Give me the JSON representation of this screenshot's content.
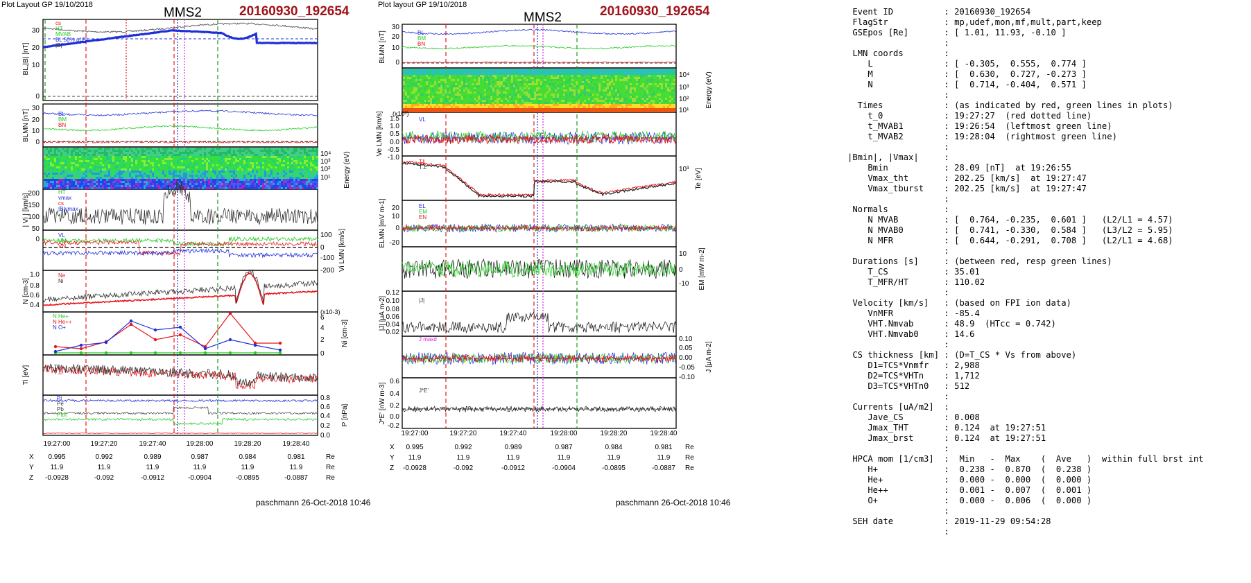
{
  "left": {
    "header": "Plot Layout GP 19/10/2018",
    "title": "MMS2",
    "event": "20160930_192654",
    "footer": "paschmann 26-Oct-2018 10:46",
    "xticks": [
      "19:27:00",
      "19:27:20",
      "19:27:40",
      "19:28:00",
      "19:28:20",
      "19:28:40"
    ],
    "coords": {
      "X": [
        "0.995",
        "0.992",
        "0.989",
        "0.987",
        "0.984",
        "0.981"
      ],
      "Y": [
        "11.9",
        "11.9",
        "11.9",
        "11.9",
        "11.9",
        "11.9"
      ],
      "Z": [
        "-0.0928",
        "-0.092",
        "-0.0912",
        "-0.0904",
        "-0.0895",
        "-0.0887"
      ],
      "unit": "Re"
    },
    "panels": {
      "p1": {
        "ylabel": "BL,|B| [nT]",
        "ticks": [
          "30",
          "20",
          "10",
          "0"
        ],
        "legend": [
          "cs",
          "HT",
          "MVAB",
          "BL 50% of BL",
          "|B|"
        ]
      },
      "p2": {
        "ylabel": "BLMN [nT]",
        "ticks": [
          "30",
          "20",
          "10",
          "0"
        ],
        "labels": [
          "BL",
          "BM",
          "BN"
        ]
      },
      "p3": {
        "ylabel": "Energy (eV)",
        "ticks": [
          "10⁴",
          "10³",
          "10²",
          "10¹"
        ]
      },
      "p4": {
        "ylabel": "| Vi | [km/s]",
        "ticks": [
          "200",
          "150",
          "100",
          "50",
          "0"
        ],
        "legend": [
          "HT",
          "vmax",
          "cs",
          "|B|vmax"
        ]
      },
      "p5": {
        "ylabel": "Vi LMN [km/s]",
        "ticks": [
          "100",
          "0",
          "-100",
          "-200"
        ],
        "labels": [
          "VL",
          "VM",
          "VN"
        ]
      },
      "p6": {
        "ylabel": "N [cm-3]",
        "ticks": [
          "1.0",
          "0.8",
          "0.6",
          "0.4"
        ],
        "legend": [
          "Ne",
          "Ni"
        ]
      },
      "p7": {
        "ylabel": "Ni [cm-3]",
        "ticks": [
          "6",
          "4",
          "2",
          "0"
        ],
        "scale": "(x10-3)",
        "legend": [
          "N He+",
          "N He++",
          "N O+"
        ]
      },
      "p8": {
        "ylabel": "Ti [eV]",
        "legend": [
          "T∥",
          "T⊥"
        ]
      },
      "p9": {
        "ylabel": "P [nPa]",
        "ticks": [
          "0.8",
          "0.6",
          "0.4",
          "0.2",
          "0.0"
        ],
        "legend": [
          "Pi",
          "Pe",
          "Pb",
          "Ptot"
        ]
      }
    }
  },
  "middle": {
    "header": "Plot layout GP 19/10/2018",
    "title": "MMS2",
    "event": "20160930_192654",
    "footer": "paschmann 26-Oct-2018 10:46",
    "xticks": [
      "19:27:00",
      "19:27:20",
      "19:27:40",
      "19:28:00",
      "19:28:20",
      "19:28:40"
    ],
    "coords": {
      "X": [
        "0.995",
        "0.992",
        "0.989",
        "0.987",
        "0.984",
        "0.981"
      ],
      "Y": [
        "11.9",
        "11.9",
        "11.9",
        "11.9",
        "11.9",
        "11.9"
      ],
      "Z": [
        "-0.0928",
        "-0.092",
        "-0.0912",
        "-0.0904",
        "-0.0895",
        "-0.0887"
      ],
      "unit": "Re"
    },
    "panels": {
      "m1": {
        "ylabel": "BLMN [nT]",
        "ticks": [
          "30",
          "20",
          "10",
          "0"
        ],
        "labels": [
          "BL",
          "BM",
          "BN"
        ]
      },
      "m2": {
        "ylabel": "Energy (eV)",
        "ticks": [
          "10⁴",
          "10³",
          "10²",
          "10¹"
        ]
      },
      "m3": {
        "ylabel": "Ve LMN [km/s]",
        "ticks": [
          "1.5",
          "1.0",
          "0.5",
          "0.0",
          "-0.5",
          "-1.0"
        ],
        "scale": "(x10³)",
        "labels": [
          "VL"
        ]
      },
      "m4": {
        "ylabel": "Te [eV]",
        "ticks": [
          "10³"
        ],
        "legend": [
          "T∥",
          "T⊥"
        ]
      },
      "m5": {
        "ylabel": "ELMN [mV m-1]",
        "ticks": [
          "20",
          "10",
          "0",
          "-20"
        ],
        "legend": [
          "EL",
          "EM",
          "EN"
        ]
      },
      "m6": {
        "ylabel": "EM [mW m-2]",
        "ticks": [
          "10",
          "0",
          "-10"
        ]
      },
      "m7": {
        "ylabel": "|J| [μA m-2]",
        "ticks": [
          "0.12",
          "0.10",
          "0.08",
          "0.06",
          "0.04",
          "0.02"
        ],
        "legend": [
          "|J|"
        ]
      },
      "m8": {
        "ylabel": "J [μA m-2]",
        "ticks": [
          "0.10",
          "0.05",
          "0.00",
          "-0.05",
          "-0.10"
        ],
        "legend": [
          "J maxd"
        ]
      },
      "m9": {
        "ylabel": "J*E' [nW m-3]",
        "ticks": [
          "0.6",
          "0.4",
          "0.2",
          "0.0",
          "-0.2"
        ],
        "legend": [
          "J*E'"
        ]
      }
    }
  },
  "info_lines": [
    [
      " Event ID",
      "20160930_192654"
    ],
    [
      " FlagStr",
      "mp,udef,mon,mf,mult,part,keep"
    ],
    [
      " GSEpos [Re]",
      "[ 1.01, 11.93, -0.10 ]"
    ],
    [
      "",
      ""
    ],
    [
      " LMN coords",
      ""
    ],
    [
      "    L",
      "[ -0.305,  0.555,  0.774 ]"
    ],
    [
      "    M",
      "[  0.630,  0.727, -0.273 ]"
    ],
    [
      "    N",
      "[  0.714, -0.404,  0.571 ]"
    ],
    [
      "",
      ""
    ],
    [
      "  Times",
      "(as indicated by red, green lines in plots)"
    ],
    [
      "    t_0",
      "19:27:27  (red dotted line)"
    ],
    [
      "    t_MVAB1",
      "19:26:54  (leftmost green line)"
    ],
    [
      "    t_MVAB2",
      "19:28:04  (rightmost green line)"
    ],
    [
      "",
      ""
    ],
    [
      "|Bmin|, |Vmax|",
      ""
    ],
    [
      "    Bmin",
      "28.09 [nT]  at 19:26:55"
    ],
    [
      "    Vmax_tht",
      "202.25 [km/s]  at 19:27:47"
    ],
    [
      "    Vmax_tburst",
      "202.25 [km/s]  at 19:27:47"
    ],
    [
      "",
      ""
    ],
    [
      " Normals",
      ""
    ],
    [
      "    N MVAB",
      "[  0.764, -0.235,  0.601 ]   (L2/L1 = 4.57)"
    ],
    [
      "    N MVAB0",
      "[  0.741, -0.330,  0.584 ]   (L3/L2 = 5.95)"
    ],
    [
      "    N MFR",
      "[  0.644, -0.291,  0.708 ]   (L2/L1 = 4.68)"
    ],
    [
      "",
      ""
    ],
    [
      " Durations [s]",
      "(between red, resp green lines)"
    ],
    [
      "    T_CS",
      "35.01"
    ],
    [
      "    T_MFR/HT",
      "110.02"
    ],
    [
      "",
      ""
    ],
    [
      " Velocity [km/s]",
      "(based on FPI ion data)"
    ],
    [
      "    VnMFR",
      "-85.4"
    ],
    [
      "    VHT.Nmvab",
      "48.9  (HTcc = 0.742)"
    ],
    [
      "    VHT.Nmvab0",
      "14.6"
    ],
    [
      "",
      ""
    ],
    [
      " CS thickness [km]",
      "(D=T_CS * Vs from above)"
    ],
    [
      "    D1=TCS*Vnmfr",
      "2,988"
    ],
    [
      "    D2=TCS*VHTn",
      "1,712"
    ],
    [
      "    D3=TCS*VHTn0",
      "512"
    ],
    [
      "",
      ""
    ],
    [
      " Currents [uA/m2]",
      ""
    ],
    [
      "    Jave_CS",
      "0.008"
    ],
    [
      "    Jmax_THT",
      "0.124  at 19:27:51"
    ],
    [
      "    Jmax_brst",
      "0.124  at 19:27:51"
    ],
    [
      "",
      ""
    ],
    [
      " HPCA mom [1/cm3]",
      " Min   -  Max    (  Ave   )  within full brst int"
    ],
    [
      "    H+",
      " 0.238 -  0.870  (  0.238 )"
    ],
    [
      "    He+",
      " 0.000 -  0.000  (  0.000 )"
    ],
    [
      "    He++",
      " 0.001 -  0.007  (  0.001 )"
    ],
    [
      "    O+",
      " 0.000 -  0.006  (  0.000 )"
    ],
    [
      "",
      ""
    ],
    [
      " SEH date",
      "2019-11-29 09:54:28"
    ],
    [
      "",
      ""
    ]
  ],
  "colors": {
    "event": "#a0131a",
    "blue": "#1f2fd8",
    "green": "#22cc22",
    "red": "#e8141a",
    "magenta": "#e020e0",
    "dkgreen": "#1a9a1a"
  }
}
